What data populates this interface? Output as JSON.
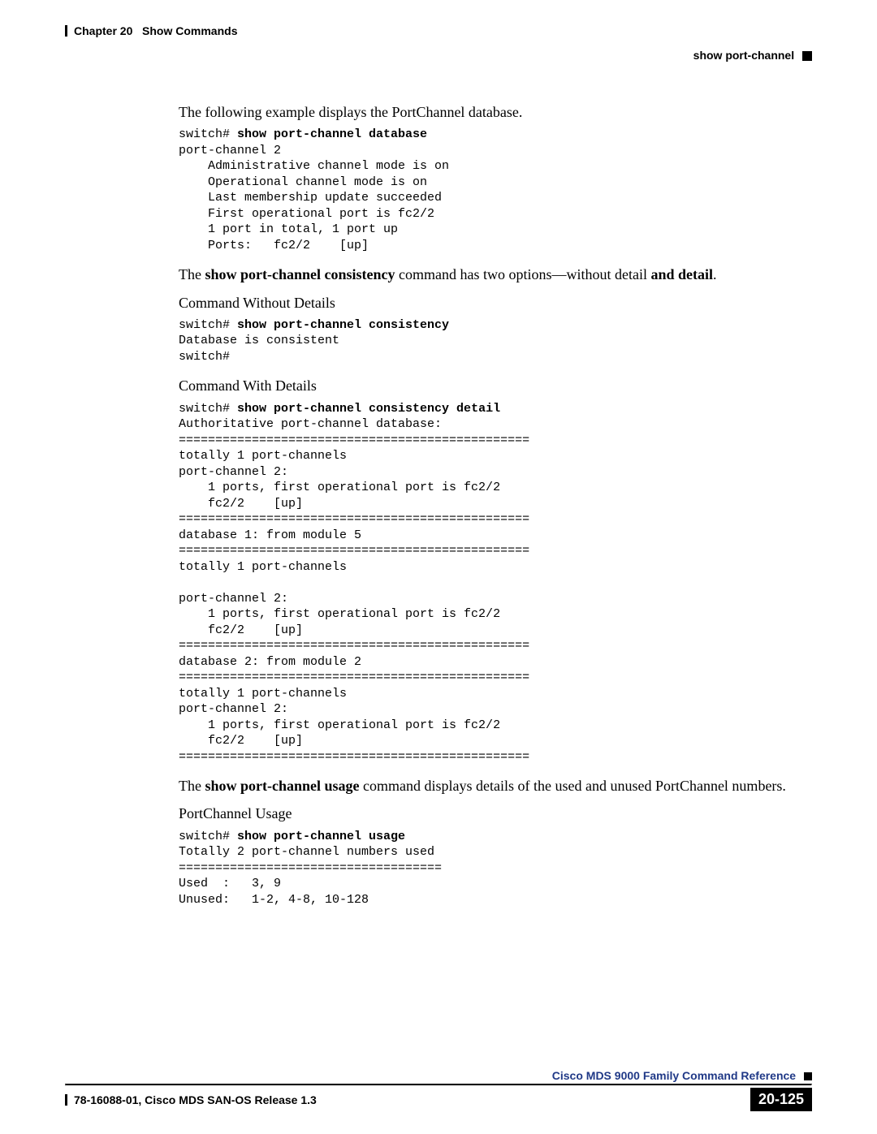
{
  "header": {
    "chapter": "Chapter 20",
    "chapter_title": "Show Commands",
    "section": "show port-channel"
  },
  "body": {
    "p1": "The following example displays the PortChannel database.",
    "code1_prefix": "switch# ",
    "code1_cmd": "show port-channel database",
    "code1_rest": "\nport-channel 2\n    Administrative channel mode is on\n    Operational channel mode is on\n    Last membership update succeeded\n    First operational port is fc2/2\n    1 port in total, 1 port up\n    Ports:   fc2/2    [up]",
    "p2_pre": "The ",
    "p2_b1": "show port-channel consistency",
    "p2_mid": " command has two options—without detail ",
    "p2_b2": "and detail",
    "p2_post": ".",
    "p3": "Command Without Details",
    "code2_prefix": "switch# ",
    "code2_cmd": "show port-channel consistency",
    "code2_rest": "\nDatabase is consistent\nswitch#",
    "p4": "Command With Details",
    "code3_prefix": "switch# ",
    "code3_cmd": "show port-channel consistency detail",
    "code3_rest": "\nAuthoritative port-channel database:\n================================================\ntotally 1 port-channels\nport-channel 2:\n    1 ports, first operational port is fc2/2\n    fc2/2    [up]\n================================================\ndatabase 1: from module 5\n================================================\ntotally 1 port-channels\n\nport-channel 2:\n    1 ports, first operational port is fc2/2\n    fc2/2    [up]\n================================================\ndatabase 2: from module 2\n================================================\ntotally 1 port-channels\nport-channel 2:\n    1 ports, first operational port is fc2/2\n    fc2/2    [up]\n================================================",
    "p5_pre": "The ",
    "p5_b1": "show port-channel usage",
    "p5_post": " command displays details of the used and unused PortChannel numbers.",
    "p6": "PortChannel Usage",
    "code4_prefix": "switch# ",
    "code4_cmd": "show port-channel usage",
    "code4_rest": "\nTotally 2 port-channel numbers used\n====================================\nUsed  :   3, 9\nUnused:   1-2, 4-8, 10-128"
  },
  "footer": {
    "book_title": "Cisco MDS 9000 Family Command Reference",
    "doc_id": "78-16088-01, Cisco MDS SAN-OS Release 1.3",
    "page_num": "20-125"
  },
  "colors": {
    "text": "#000000",
    "link": "#203987",
    "background": "#ffffff"
  }
}
